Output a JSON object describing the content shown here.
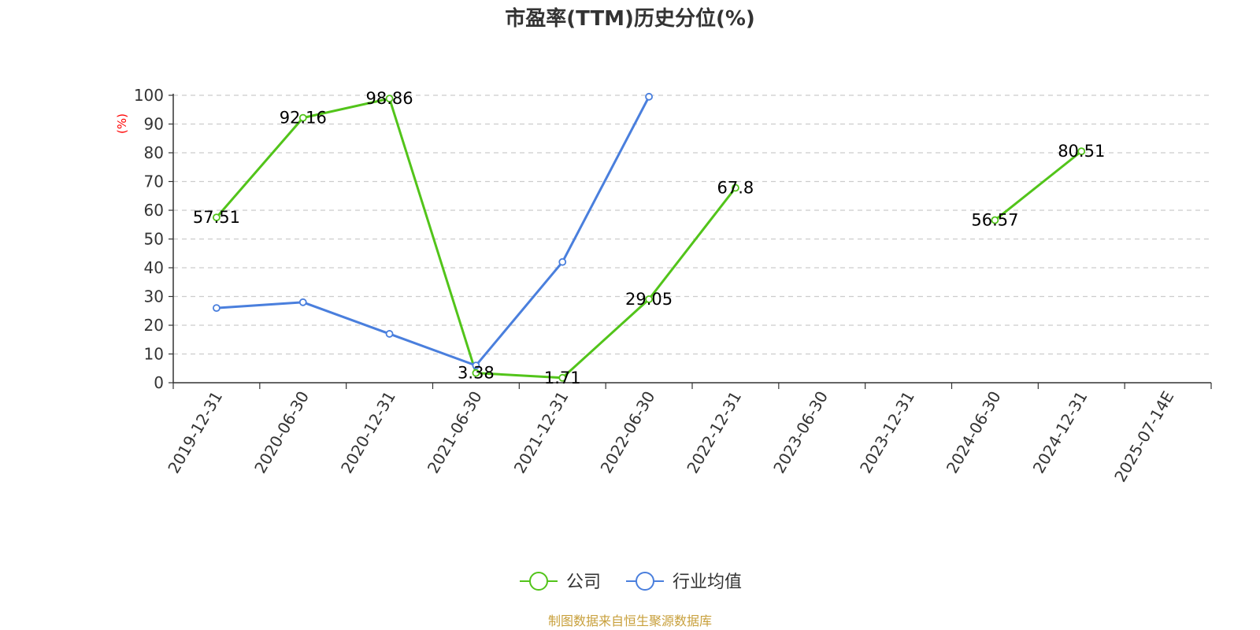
{
  "chart_data": {
    "type": "line",
    "title": "市盈率(TTM)历史分位(%)",
    "ylabel": "(%)",
    "ylim": [
      0,
      100
    ],
    "yticks": [
      0,
      10,
      20,
      30,
      40,
      50,
      60,
      70,
      80,
      90,
      100
    ],
    "categories": [
      "2019-12-31",
      "2020-06-30",
      "2020-12-31",
      "2021-06-30",
      "2021-12-31",
      "2022-06-30",
      "2022-12-31",
      "2023-06-30",
      "2023-12-31",
      "2024-06-30",
      "2024-12-31",
      "2025-07-14E"
    ],
    "grid": true,
    "legend_position": "bottom",
    "series": [
      {
        "name": "公司",
        "color": "#52c41a",
        "show_labels": true,
        "values": [
          57.51,
          92.16,
          98.86,
          3.38,
          1.71,
          29.05,
          67.8,
          null,
          null,
          56.57,
          80.51,
          null
        ]
      },
      {
        "name": "行业均值",
        "color": "#4a7fdd",
        "show_labels": false,
        "values": [
          26,
          28,
          17,
          6,
          42,
          99.5,
          null,
          null,
          null,
          null,
          null,
          null
        ]
      }
    ]
  },
  "source": {
    "text": "制图数据来自恒生聚源数据库",
    "color": "#c8a03c"
  }
}
